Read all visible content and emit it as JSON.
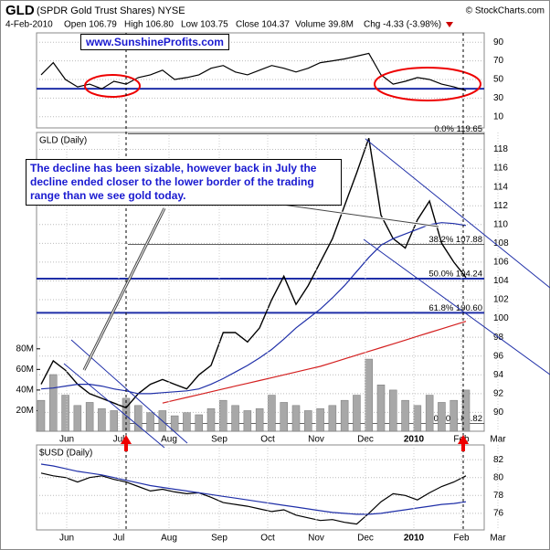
{
  "header": {
    "symbol": "GLD",
    "name": "(SPDR Gold Trust Shares) NYSE",
    "copyright": "© StockCharts.com",
    "date": "4-Feb-2010",
    "quote": [
      "Open 106.79",
      "High 106.80",
      "Low 103.75",
      "Close 104.37",
      "Volume 39.8M",
      "Chg -4.33 (-3.98%)"
    ],
    "website": "www.SunshineProfits.com"
  },
  "chart_data": [
    {
      "type": "line",
      "ylim": [
        -2,
        100
      ],
      "yticks": [
        90,
        70,
        50,
        30,
        10
      ],
      "hlines": [
        40
      ],
      "series": [
        {
          "color": "#000000",
          "values": [
            55,
            68,
            50,
            42,
            45,
            40,
            48,
            45,
            52,
            55,
            60,
            50,
            52,
            55,
            62,
            65,
            58,
            55,
            60,
            65,
            62,
            58,
            62,
            68,
            70,
            72,
            75,
            78,
            55,
            45,
            48,
            52,
            50,
            45,
            42,
            38
          ]
        }
      ]
    },
    {
      "type": "line",
      "title": "GLD (Daily)",
      "ylim": [
        88,
        119.8
      ],
      "yticks": [
        90,
        92,
        94,
        96,
        98,
        100,
        102,
        104,
        106,
        108,
        110,
        112,
        114,
        116,
        118
      ],
      "y2lim": [
        0,
        290
      ],
      "y2ticks": [
        {
          "value": 80,
          "label": "80M"
        },
        {
          "value": 60,
          "label": "60M"
        },
        {
          "value": 40,
          "label": "40M"
        },
        {
          "value": 20,
          "label": "20M"
        }
      ],
      "x_labels": [
        "Jun",
        "Jul",
        "Aug",
        "Sep",
        "Oct",
        "Nov",
        "Dec",
        "2010",
        "Feb",
        "Mar"
      ],
      "annotation": "The decline has been sizable, however back in July the decline ended closer to the lower border of the trading range than we see gold today.",
      "fib_levels": [
        {
          "value": 119.65,
          "label": "0.0% 119.65"
        },
        {
          "value": 107.88,
          "label": "38.2% 107.88"
        },
        {
          "value": 104.24,
          "label": "50.0% 104.24"
        },
        {
          "value": 100.6,
          "label": "61.8% 100.60"
        },
        {
          "value": 88.82,
          "label": "100.0% 88.82"
        }
      ],
      "hlines": [
        104.24,
        100.6
      ],
      "series": [
        {
          "type": "bar",
          "axis": "y2",
          "color": "#a8a8a8",
          "values": [
            30,
            55,
            35,
            25,
            28,
            22,
            20,
            32,
            25,
            18,
            20,
            15,
            18,
            16,
            22,
            30,
            25,
            20,
            22,
            35,
            28,
            25,
            20,
            22,
            25,
            30,
            35,
            70,
            45,
            40,
            30,
            25,
            35,
            28,
            30,
            40
          ]
        },
        {
          "color": "#000000",
          "values": [
            93,
            95.5,
            94.5,
            93,
            92,
            91.5,
            91,
            90.5,
            92,
            93,
            93.5,
            93,
            92.5,
            94,
            95,
            98.5,
            98.5,
            97.5,
            99,
            102,
            104.5,
            101.5,
            103.5,
            106,
            108.5,
            112,
            115.5,
            119.2,
            111,
            108.5,
            107.5,
            110.5,
            112.5,
            108,
            106,
            104.37
          ]
        },
        {
          "color": "#1f2fa8",
          "values": [
            92.5,
            92.6,
            92.8,
            93,
            93,
            92.8,
            92.5,
            92.3,
            92,
            92,
            92.1,
            92.2,
            92.3,
            92.5,
            93,
            93.6,
            94.3,
            95,
            95.8,
            96.7,
            97.8,
            99,
            100,
            101,
            102.2,
            103.5,
            105,
            106.5,
            107.8,
            108.5,
            109,
            109.5,
            110,
            110.2,
            110.1,
            109.9
          ]
        },
        {
          "color": "#d42020",
          "values": [
            null,
            null,
            null,
            null,
            null,
            null,
            null,
            null,
            null,
            null,
            91,
            91.3,
            91.6,
            91.9,
            92.2,
            92.5,
            92.8,
            93.1,
            93.4,
            93.7,
            94,
            94.3,
            94.6,
            94.9,
            95.3,
            95.7,
            96.1,
            96.5,
            96.9,
            97.3,
            97.7,
            98.1,
            98.5,
            98.9,
            99.3,
            99.7
          ]
        }
      ]
    },
    {
      "type": "line",
      "title": "$USD (Daily)",
      "ylim": [
        74.15,
        83.65
      ],
      "yticks": [
        82,
        80,
        78,
        76
      ],
      "x_labels": [
        "Jun",
        "Jul",
        "Aug",
        "Sep",
        "Oct",
        "Nov",
        "Dec",
        "2010",
        "Feb",
        "Mar"
      ],
      "series": [
        {
          "color": "#000000",
          "values": [
            80.5,
            80.2,
            80,
            79.5,
            80,
            80.2,
            79.8,
            79.5,
            79,
            78.5,
            78.7,
            78.4,
            78.2,
            78.3,
            77.8,
            77.2,
            77,
            76.8,
            76.5,
            76.2,
            76.4,
            75.8,
            75.5,
            75.2,
            75.3,
            75,
            74.8,
            76,
            77.3,
            78.2,
            78,
            77.5,
            78.3,
            79,
            79.5,
            80.2
          ]
        },
        {
          "color": "#1f2fa8",
          "values": [
            81.5,
            81.3,
            81,
            80.7,
            80.5,
            80.3,
            80,
            79.7,
            79.4,
            79.1,
            78.9,
            78.7,
            78.5,
            78.3,
            78.1,
            77.9,
            77.7,
            77.5,
            77.3,
            77.1,
            76.9,
            76.7,
            76.5,
            76.3,
            76.1,
            76,
            75.9,
            75.9,
            76,
            76.2,
            76.4,
            76.6,
            76.8,
            77,
            77.1,
            77.3
          ]
        }
      ]
    }
  ]
}
